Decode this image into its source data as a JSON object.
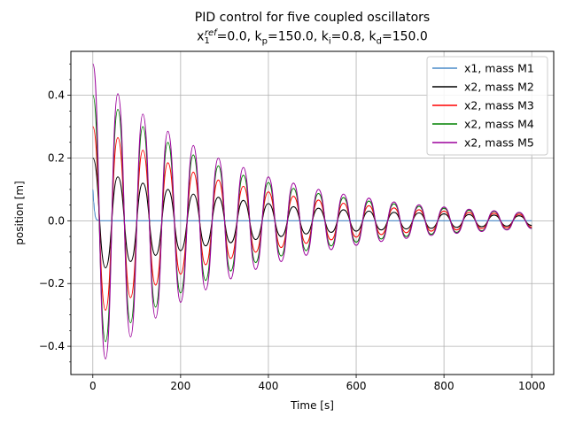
{
  "chart_data": {
    "type": "line",
    "title": "PID control for five coupled oscillators",
    "subtitle": {
      "x_symbol": "x",
      "x_sup": "ref",
      "x_sub": "1",
      "x_value": "=0.0, ",
      "kp_label": "k",
      "kp_sub": "p",
      "kp_value": "=150.0, ",
      "ki_label": "k",
      "ki_sub": "i",
      "ki_value": "=0.8, ",
      "kd_label": "k",
      "kd_sub": "d",
      "kd_value": "=150.0"
    },
    "xlabel": "Time [s]",
    "ylabel": "position [m]",
    "xlim": [
      -50,
      1050
    ],
    "ylim": [
      -0.49,
      0.54
    ],
    "xticks": [
      0,
      200,
      400,
      600,
      800,
      1000
    ],
    "xtick_labels": [
      "0",
      "200",
      "400",
      "600",
      "800",
      "1000"
    ],
    "yticks": [
      -0.4,
      -0.2,
      0.0,
      0.2,
      0.4
    ],
    "ytick_labels": [
      "−0.4",
      "−0.2",
      "0.0",
      "0.2",
      "0.4"
    ],
    "grid": true,
    "legend_position": "top-right",
    "series": [
      {
        "name": "x1, mass M1",
        "color": "#4a8bc9",
        "x": [
          0,
          2,
          4,
          6,
          8,
          10,
          15,
          20,
          30,
          50,
          100,
          200,
          400,
          600,
          800,
          1000
        ],
        "values": [
          0.1,
          0.06,
          0.03,
          0.012,
          0.005,
          0.002,
          0.0005,
          0.0,
          0.0,
          0.0,
          0.0,
          0.0,
          0.0,
          0.0,
          0.0,
          0.0
        ]
      },
      {
        "name": "x2, mass M2",
        "color": "#000000",
        "x": [
          0,
          29,
          57,
          86,
          114,
          143,
          171,
          200,
          229,
          257,
          286,
          314,
          343,
          371,
          400,
          429,
          457,
          486,
          514,
          543,
          571,
          600,
          629,
          657,
          686,
          714,
          743,
          771,
          800,
          829,
          857,
          886,
          914,
          943,
          971,
          1000
        ],
        "values": [
          0.2,
          -0.15,
          0.14,
          -0.13,
          0.12,
          -0.11,
          0.1,
          -0.095,
          0.085,
          -0.08,
          0.075,
          -0.07,
          0.065,
          -0.06,
          0.055,
          -0.05,
          0.045,
          -0.042,
          0.04,
          -0.037,
          0.035,
          -0.033,
          0.031,
          -0.029,
          0.027,
          -0.026,
          0.025,
          -0.024,
          0.022,
          -0.021,
          0.02,
          -0.019,
          0.018,
          -0.017,
          0.016,
          -0.015
        ]
      },
      {
        "name": "x2, mass M3",
        "color": "#ff0000",
        "x": [
          0,
          29,
          57,
          86,
          114,
          143,
          171,
          200,
          229,
          257,
          286,
          314,
          343,
          371,
          400,
          429,
          457,
          486,
          514,
          543,
          571,
          600,
          629,
          657,
          686,
          714,
          743,
          771,
          800,
          829,
          857,
          886,
          914,
          943,
          971,
          1000
        ],
        "values": [
          0.3,
          -0.285,
          0.265,
          -0.245,
          0.225,
          -0.205,
          0.185,
          -0.17,
          0.155,
          -0.14,
          0.13,
          -0.12,
          0.11,
          -0.1,
          0.092,
          -0.085,
          0.078,
          -0.072,
          0.066,
          -0.061,
          0.056,
          -0.052,
          0.048,
          -0.044,
          0.041,
          -0.038,
          0.035,
          -0.033,
          0.031,
          -0.029,
          0.027,
          -0.025,
          0.024,
          -0.022,
          0.021,
          -0.02
        ]
      },
      {
        "name": "x2, mass M4",
        "color": "#008000",
        "x": [
          0,
          29,
          57,
          86,
          114,
          143,
          171,
          200,
          229,
          257,
          286,
          314,
          343,
          371,
          400,
          429,
          457,
          486,
          514,
          543,
          571,
          600,
          629,
          657,
          686,
          714,
          743,
          771,
          800,
          829,
          857,
          886,
          914,
          943,
          971,
          1000
        ],
        "values": [
          0.4,
          -0.385,
          0.355,
          -0.325,
          0.3,
          -0.275,
          0.25,
          -0.23,
          0.21,
          -0.19,
          0.175,
          -0.16,
          0.145,
          -0.133,
          0.122,
          -0.112,
          0.103,
          -0.095,
          0.087,
          -0.08,
          0.074,
          -0.068,
          0.063,
          -0.058,
          0.054,
          -0.05,
          0.046,
          -0.043,
          0.04,
          -0.037,
          0.034,
          -0.032,
          0.03,
          -0.028,
          0.026,
          -0.024
        ]
      },
      {
        "name": "x2, mass M5",
        "color": "#9b009b",
        "x": [
          0,
          29,
          57,
          86,
          114,
          143,
          171,
          200,
          229,
          257,
          286,
          314,
          343,
          371,
          400,
          429,
          457,
          486,
          514,
          543,
          571,
          600,
          629,
          657,
          686,
          714,
          743,
          771,
          800,
          829,
          857,
          886,
          914,
          943,
          971,
          1000
        ],
        "values": [
          0.5,
          -0.44,
          0.405,
          -0.37,
          0.34,
          -0.31,
          0.285,
          -0.26,
          0.24,
          -0.22,
          0.2,
          -0.185,
          0.17,
          -0.155,
          0.14,
          -0.13,
          0.12,
          -0.11,
          0.1,
          -0.092,
          0.085,
          -0.078,
          0.072,
          -0.066,
          0.06,
          -0.056,
          0.051,
          -0.047,
          0.044,
          -0.04,
          0.037,
          -0.034,
          0.032,
          -0.029,
          0.027,
          -0.025
        ]
      }
    ]
  }
}
